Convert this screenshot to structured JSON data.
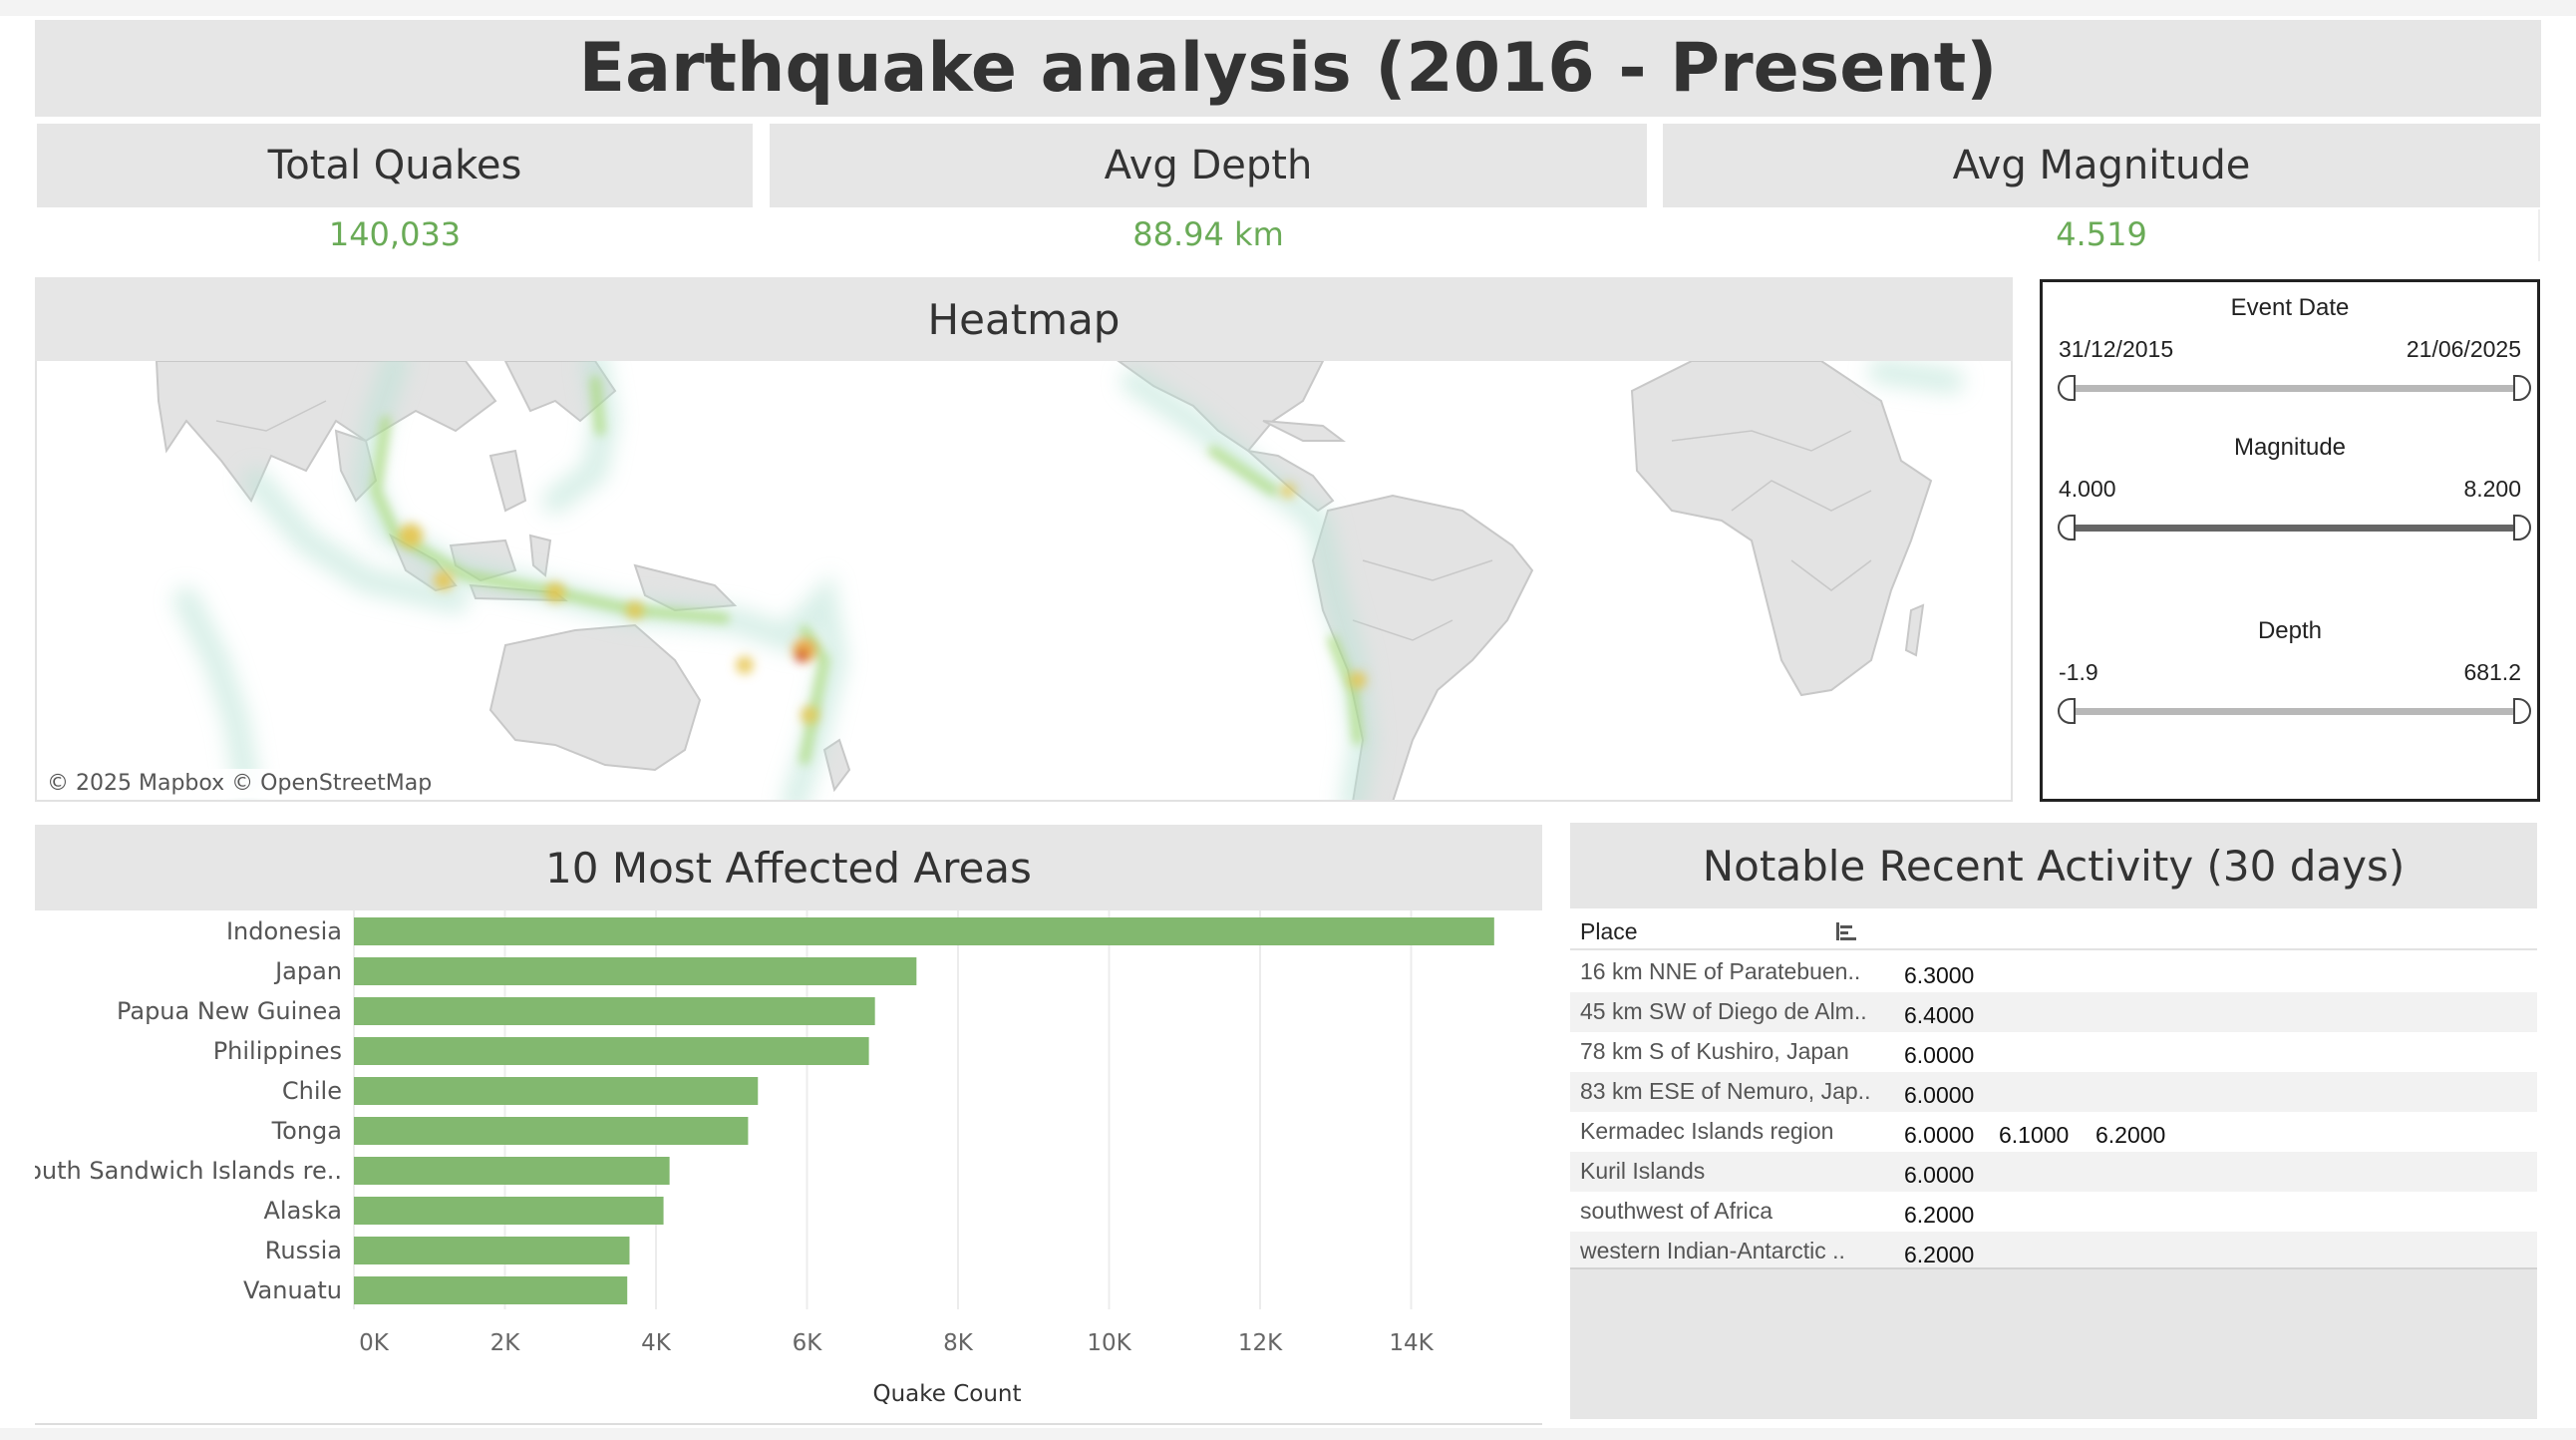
{
  "dashboard": {
    "title": "Earthquake analysis (2016 - Present)"
  },
  "kpis": [
    {
      "label": "Total Quakes",
      "value": "140,033"
    },
    {
      "label": "Avg Depth",
      "value": "88.94 km"
    },
    {
      "label": "Avg Magnitude",
      "value": "4.519"
    }
  ],
  "heatmap": {
    "title": "Heatmap",
    "attribution": "© 2025 Mapbox  © OpenStreetMap"
  },
  "filters": {
    "event_date": {
      "title": "Event Date",
      "min": "31/12/2015",
      "max": "21/06/2025"
    },
    "magnitude": {
      "title": "Magnitude",
      "min": "4.000",
      "max": "8.200"
    },
    "depth": {
      "title": "Depth",
      "min": "-1.9",
      "max": "681.2"
    }
  },
  "colors": {
    "accent_green": "#6aab57",
    "bar_green": "#82b86f",
    "header_gray": "#e6e6e6"
  },
  "bar_chart": {
    "title": "10 Most Affected Areas"
  },
  "chart_data": {
    "type": "bar",
    "orientation": "horizontal",
    "title": "10 Most Affected Areas",
    "xlabel": "Quake Count",
    "ylabel": "",
    "categories": [
      "Indonesia",
      "Japan",
      "Papua New Guinea",
      "Philippines",
      "Chile",
      "Tonga",
      "South Sandwich Islands re..",
      "Alaska",
      "Russia",
      "Vanuatu"
    ],
    "values": [
      15100,
      7450,
      6900,
      6820,
      5350,
      5220,
      4180,
      4100,
      3650,
      3620
    ],
    "xlim": [
      0,
      16000
    ],
    "xticks": [
      "0K",
      "2K",
      "4K",
      "6K",
      "8K",
      "10K",
      "12K",
      "14K"
    ],
    "grid": true,
    "legend": "none"
  },
  "recent_activity": {
    "title": "Notable Recent Activity (30 days)",
    "column_place": "Place",
    "rows": [
      {
        "place": "16 km NNE of Paratebuen..",
        "mags": [
          "6.3000"
        ]
      },
      {
        "place": "45 km SW of Diego de Alm..",
        "mags": [
          "6.4000"
        ]
      },
      {
        "place": "78 km S of Kushiro, Japan",
        "mags": [
          "6.0000"
        ]
      },
      {
        "place": "83 km ESE of Nemuro, Jap..",
        "mags": [
          "6.0000"
        ]
      },
      {
        "place": "Kermadec Islands region",
        "mags": [
          "6.0000",
          "6.1000",
          "6.2000"
        ]
      },
      {
        "place": "Kuril Islands",
        "mags": [
          "6.0000"
        ]
      },
      {
        "place": "southwest of Africa",
        "mags": [
          "6.2000"
        ]
      },
      {
        "place": "western Indian-Antarctic ..",
        "mags": [
          "6.2000"
        ]
      }
    ]
  }
}
